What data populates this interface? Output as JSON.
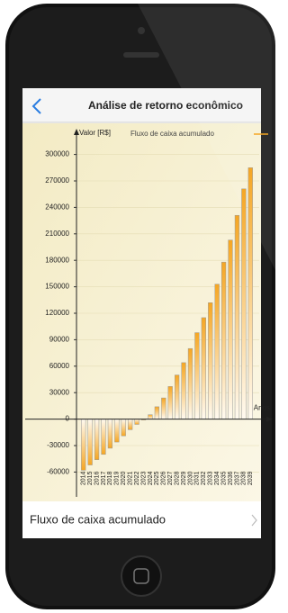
{
  "screen": {
    "title": "Análise de retorno econômico",
    "row_label": "Fluxo de caixa acumulado"
  },
  "chart_data": {
    "type": "bar",
    "y_label": "Valor [R$]",
    "x_label": "Anos",
    "categories": [
      "2014",
      "2015",
      "2016",
      "2017",
      "2018",
      "2019",
      "2020",
      "2021",
      "2022",
      "2023",
      "2024",
      "2025",
      "2026",
      "2027",
      "2028",
      "2029",
      "2030",
      "2031",
      "2032",
      "2033",
      "2034",
      "2035",
      "2036",
      "2037",
      "2038",
      "2039"
    ],
    "series": [
      {
        "name": "Fluxo de caixa acumulado",
        "color": "#f5a623",
        "values": [
          -58000,
          -52000,
          -46000,
          -40000,
          -33000,
          -26000,
          -19000,
          -12000,
          -6000,
          -1000,
          5000,
          14000,
          24000,
          37000,
          50000,
          64000,
          80000,
          98000,
          115000,
          132000,
          153000,
          178000,
          203000,
          231000,
          261000,
          285000
        ]
      }
    ],
    "ylim": [
      -80000,
      320000
    ],
    "yticks": [
      -60000,
      -30000,
      0,
      30000,
      60000,
      90000,
      120000,
      150000,
      180000,
      210000,
      240000,
      270000,
      300000
    ],
    "grid": true
  }
}
